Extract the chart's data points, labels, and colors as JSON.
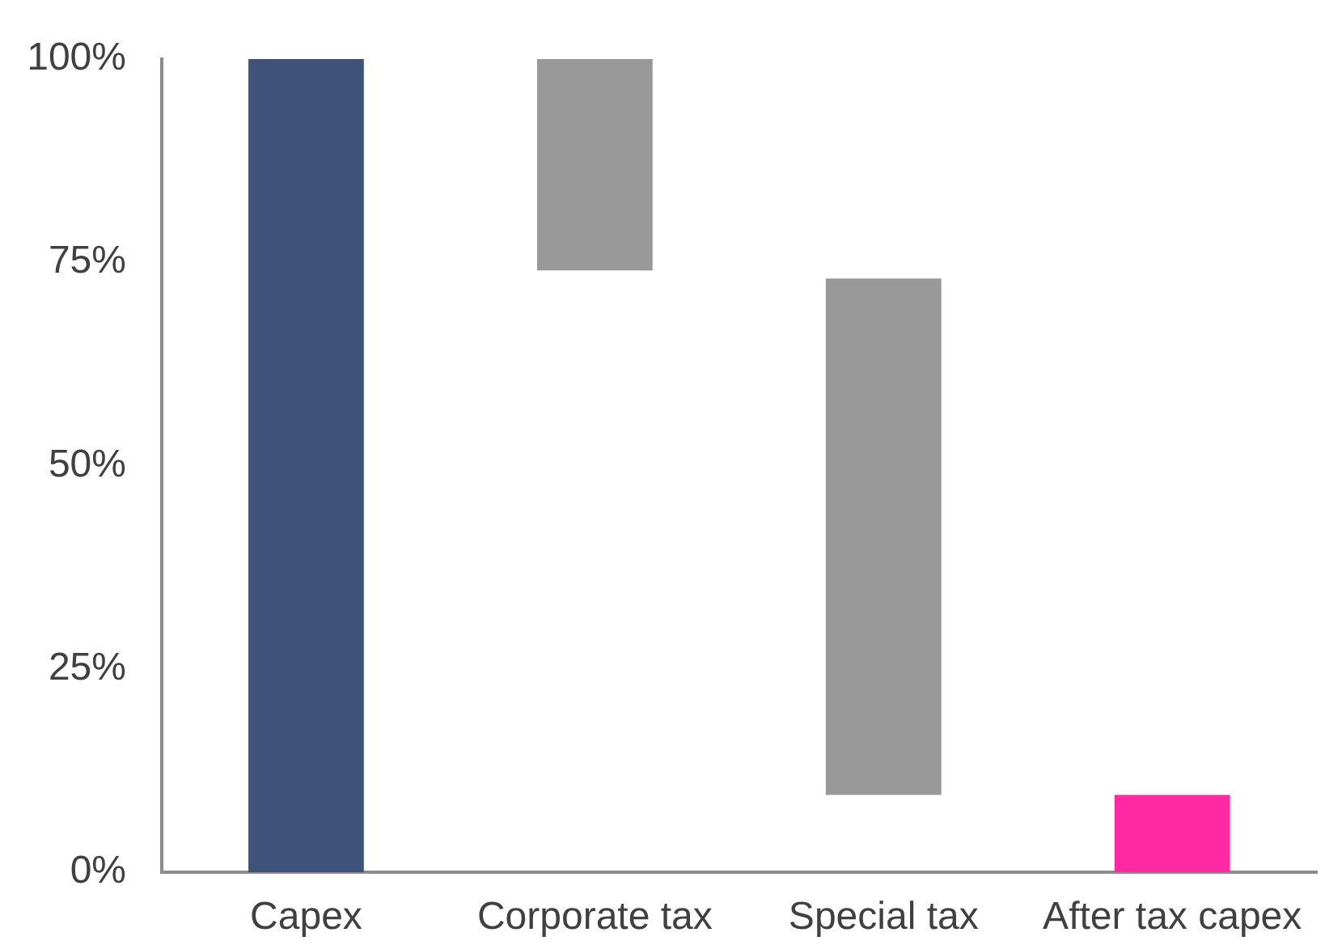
{
  "chart_data": {
    "type": "bar",
    "categories": [
      "Capex",
      "Corporate tax",
      "Special tax",
      "After tax capex"
    ],
    "values": [
      100,
      26,
      63.5,
      9.5
    ],
    "base": [
      0,
      74,
      9.5,
      0
    ],
    "colors": [
      "#3f5279",
      "#999999",
      "#999999",
      "#ff29a3"
    ],
    "ylim": [
      0,
      100
    ],
    "yticks": [
      {
        "value": 0,
        "label": "0%"
      },
      {
        "value": 25,
        "label": "25%"
      },
      {
        "value": 50,
        "label": "50%"
      },
      {
        "value": 75,
        "label": "75%"
      },
      {
        "value": 100,
        "label": "100%"
      }
    ]
  }
}
